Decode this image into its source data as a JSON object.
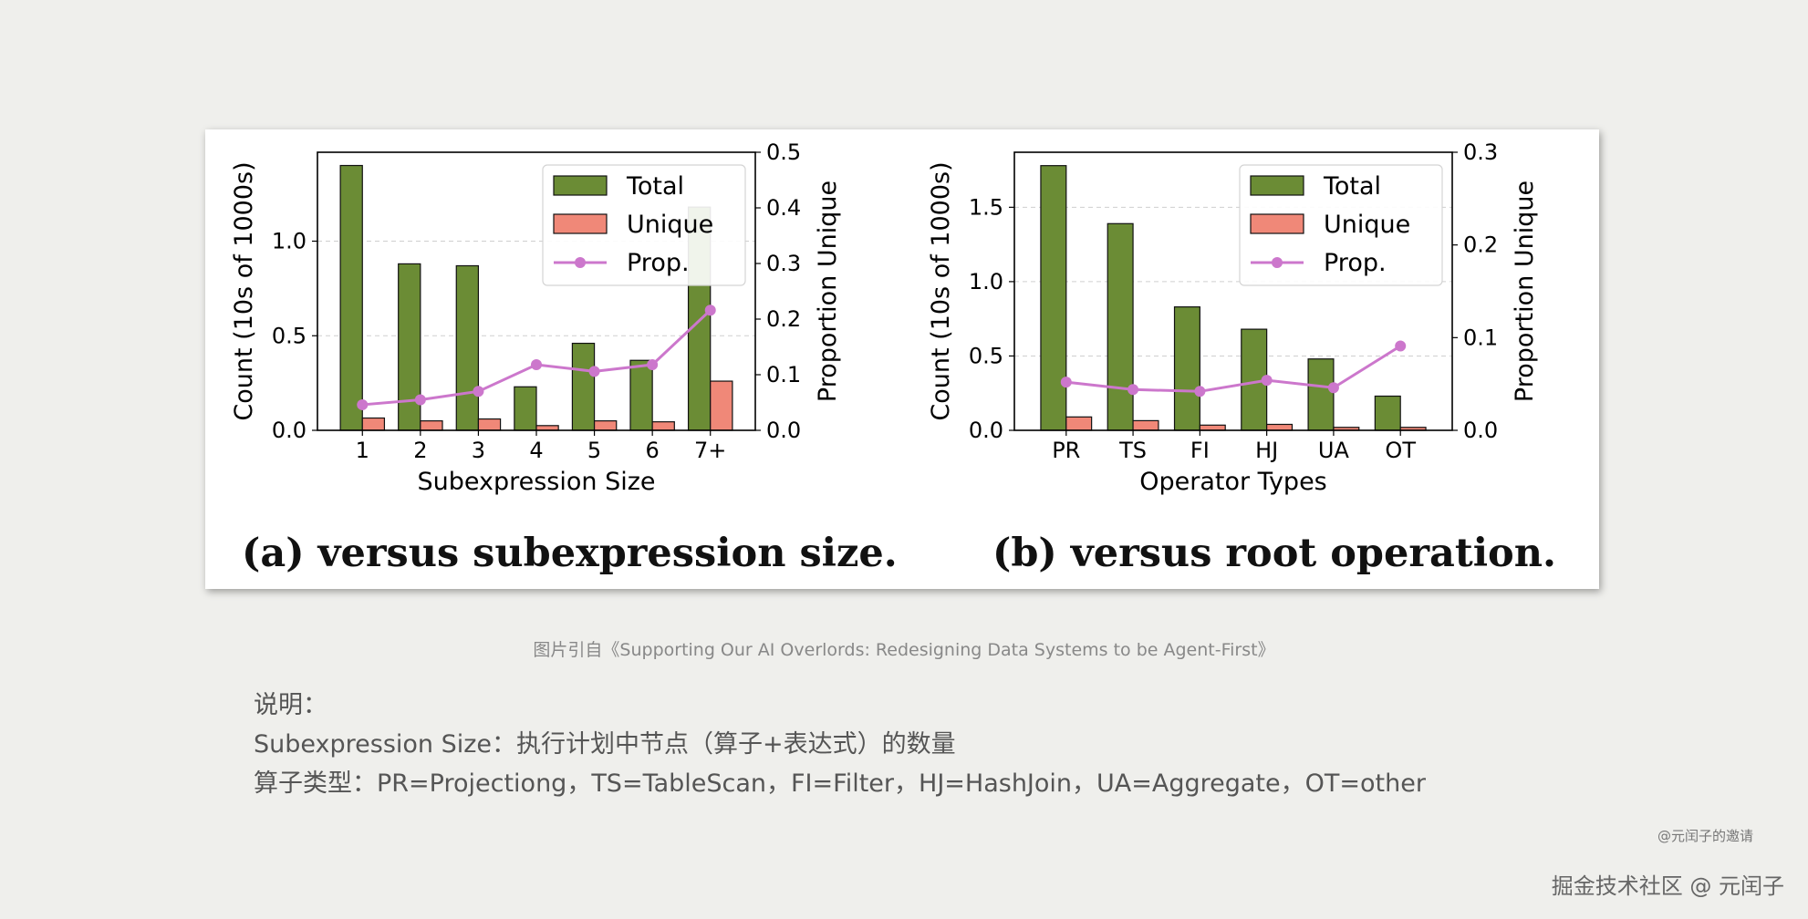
{
  "chart_data": [
    {
      "type": "bar",
      "caption": "(a) versus subexpression size.",
      "xlabel": "Subexpression Size",
      "ylabel": "Count (10s of 1000s)",
      "ylabel_right": "Proportion Unique",
      "categories": [
        "1",
        "2",
        "3",
        "4",
        "5",
        "6",
        "7+"
      ],
      "ylim": [
        0,
        1.47
      ],
      "yticks": [
        "0.0",
        "0.5",
        "1.0"
      ],
      "ytick_values": [
        0,
        0.5,
        1.0
      ],
      "ylim_right": [
        0,
        0.5
      ],
      "yticks_right": [
        "0.0",
        "0.1",
        "0.2",
        "0.3",
        "0.4",
        "0.5"
      ],
      "ytick_values_right": [
        0,
        0.1,
        0.2,
        0.3,
        0.4,
        0.5
      ],
      "grid": "horizontal dashed",
      "legend_position": "top-right",
      "series": [
        {
          "name": "Total",
          "type": "bar",
          "color": "#6b8c35",
          "values": [
            1.4,
            0.88,
            0.87,
            0.23,
            0.46,
            0.37,
            1.18
          ]
        },
        {
          "name": "Unique",
          "type": "bar",
          "color": "#f08878",
          "values": [
            0.065,
            0.05,
            0.06,
            0.025,
            0.05,
            0.045,
            0.26
          ]
        },
        {
          "name": "Prop.",
          "type": "line",
          "axis": "right",
          "color": "#cc77cc",
          "values": [
            0.046,
            0.055,
            0.07,
            0.118,
            0.106,
            0.118,
            0.216
          ]
        }
      ]
    },
    {
      "type": "bar",
      "caption": "(b) versus root operation.",
      "xlabel": "Operator Types",
      "ylabel": "Count (10s of 1000s)",
      "ylabel_right": "Proportion Unique",
      "categories": [
        "PR",
        "TS",
        "FI",
        "HJ",
        "UA",
        "OT"
      ],
      "ylim": [
        0,
        1.87
      ],
      "yticks": [
        "0.0",
        "0.5",
        "1.0",
        "1.5"
      ],
      "ytick_values": [
        0,
        0.5,
        1.0,
        1.5
      ],
      "ylim_right": [
        0,
        0.3
      ],
      "yticks_right": [
        "0.0",
        "0.1",
        "0.2",
        "0.3"
      ],
      "ytick_values_right": [
        0,
        0.1,
        0.2,
        0.3
      ],
      "grid": "horizontal dashed",
      "legend_position": "top-right",
      "series": [
        {
          "name": "Total",
          "type": "bar",
          "color": "#6b8c35",
          "values": [
            1.78,
            1.39,
            0.83,
            0.68,
            0.48,
            0.23
          ]
        },
        {
          "name": "Unique",
          "type": "bar",
          "color": "#f08878",
          "values": [
            0.09,
            0.065,
            0.035,
            0.04,
            0.02,
            0.02
          ]
        },
        {
          "name": "Prop.",
          "type": "line",
          "axis": "right",
          "color": "#cc77cc",
          "values": [
            0.052,
            0.044,
            0.042,
            0.054,
            0.046,
            0.091
          ]
        }
      ]
    }
  ],
  "source_line": "图片引自《Supporting Our AI Overlords: Redesigning Data Systems to be Agent-First》",
  "notes": [
    "说明：",
    "Subexpression Size：执行计划中节点（算子+表达式）的数量",
    "算子类型：PR=Projectiong，TS=TableScan，FI=Filter，HJ=HashJoin，UA=Aggregate，OT=other"
  ],
  "invite": "@元闰子的邀请",
  "watermark": "掘金技术社区 @ 元闰子"
}
